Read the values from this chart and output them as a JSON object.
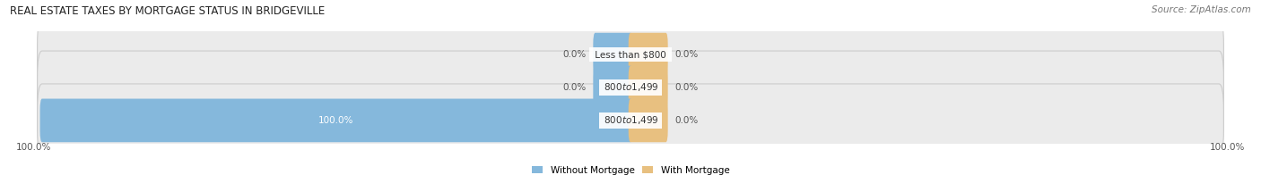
{
  "title": "REAL ESTATE TAXES BY MORTGAGE STATUS IN BRIDGEVILLE",
  "source": "Source: ZipAtlas.com",
  "bars": [
    {
      "label": "Less than $800",
      "without_mortgage": 0.0,
      "with_mortgage": 0.0
    },
    {
      "label": "$800 to $1,499",
      "without_mortgage": 0.0,
      "with_mortgage": 0.0
    },
    {
      "label": "$800 to $1,499",
      "without_mortgage": 100.0,
      "with_mortgage": 0.0
    }
  ],
  "color_without": "#85B8DC",
  "color_with": "#E8C080",
  "bar_bg_color": "#EBEBEB",
  "bar_bg_edge_color": "#CCCCCC",
  "axis_left_label": "100.0%",
  "axis_right_label": "100.0%",
  "legend_without": "Without Mortgage",
  "legend_with": "With Mortgage",
  "title_fontsize": 8.5,
  "source_fontsize": 7.5,
  "label_fontsize": 7.5,
  "bar_height": 0.62,
  "xlim": 100,
  "zero_stub": 6.0
}
